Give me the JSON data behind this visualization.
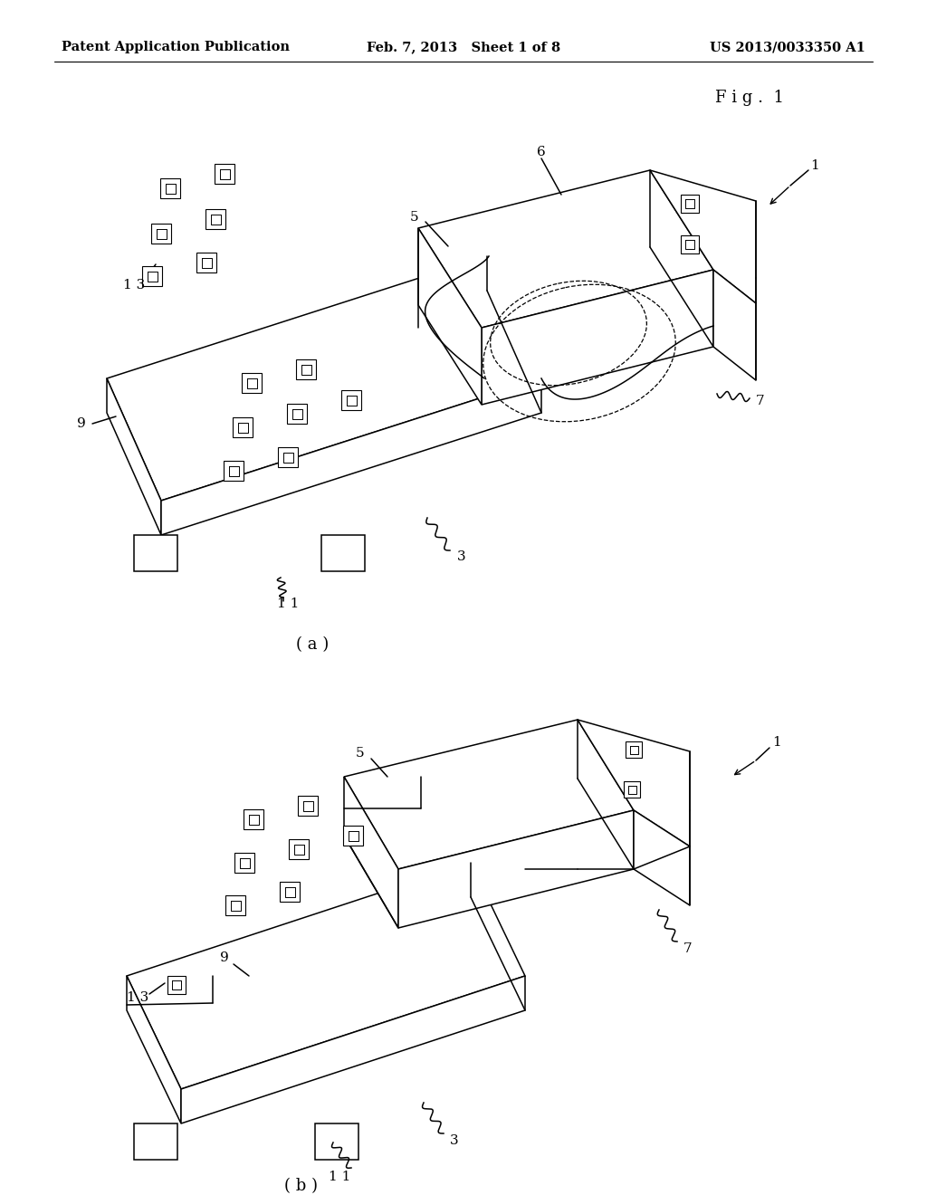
{
  "background_color": "#ffffff",
  "page_width": 10.24,
  "page_height": 13.2,
  "header_left": "Patent Application Publication",
  "header_center": "Feb. 7, 2013   Sheet 1 of 8",
  "header_right": "US 2013/0033350 A1",
  "fig_label": "Fig. 1",
  "lc": "#000000",
  "lw": 1.1,
  "fs": 11
}
